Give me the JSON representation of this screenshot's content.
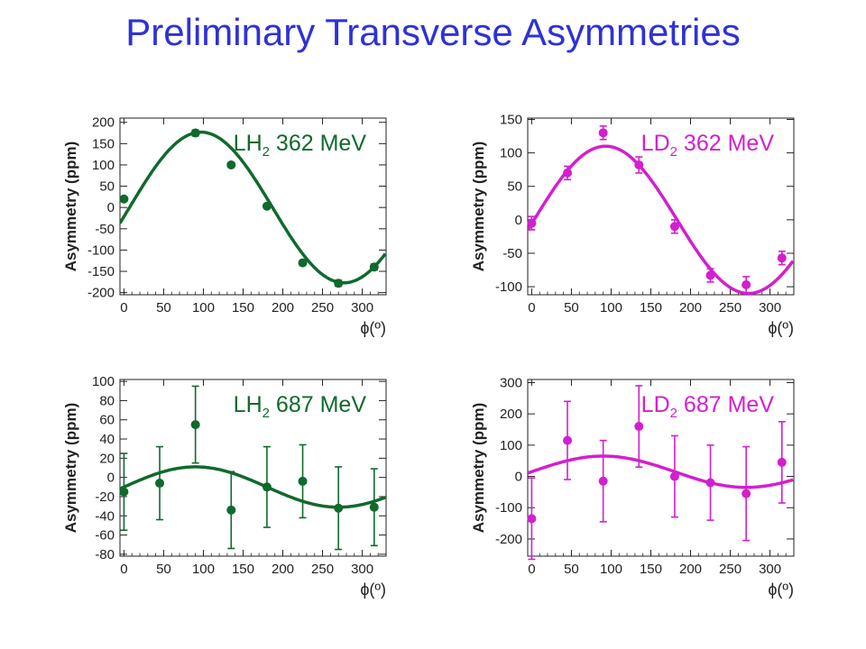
{
  "title": "Preliminary Transverse Asymmetries",
  "colors": {
    "title": "#2e32d6",
    "green": "#0f6a2c",
    "magenta": "#d31fcf"
  },
  "chart_data": [
    {
      "type": "scatter",
      "title_main": "LH",
      "title_sub": "2",
      "title_rest": " 362 MeV",
      "color": "#0f6a2c",
      "xlabel": "ϕ(º)",
      "ylabel": "Asymmetry (ppm)",
      "xlim": [
        -5,
        330
      ],
      "ylim": [
        -205,
        210
      ],
      "xticks": [
        0,
        50,
        100,
        150,
        200,
        250,
        300
      ],
      "yticks": [
        -200,
        -150,
        -100,
        -50,
        0,
        50,
        100,
        150,
        200
      ],
      "ytick_labels": [
        "-200",
        "-150",
        "-100",
        "-50",
        "0",
        "50",
        "100",
        "150",
        "200"
      ],
      "points": [
        {
          "x": 0,
          "y": 20,
          "err": 5
        },
        {
          "x": 90,
          "y": 175,
          "err": 7
        },
        {
          "x": 135,
          "y": 100,
          "err": 5
        },
        {
          "x": 180,
          "y": 3,
          "err": 5
        },
        {
          "x": 225,
          "y": -130,
          "err": 5
        },
        {
          "x": 270,
          "y": -178,
          "err": 7
        },
        {
          "x": 315,
          "y": -140,
          "err": 7
        }
      ],
      "fit": {
        "amplitude": 177,
        "phase_deg": -7,
        "offset": 0
      }
    },
    {
      "type": "scatter",
      "title_main": "LD",
      "title_sub": "2",
      "title_rest": " 362 MeV",
      "color": "#d31fcf",
      "xlabel": "ϕ(º)",
      "ylabel": "Asymmetry (ppm)",
      "xlim": [
        -5,
        330
      ],
      "ylim": [
        -112,
        152
      ],
      "xticks": [
        0,
        50,
        100,
        150,
        200,
        250,
        300
      ],
      "yticks": [
        -100,
        -50,
        0,
        50,
        100,
        150
      ],
      "ytick_labels": [
        "-100",
        "-50",
        "0",
        "50",
        "100",
        "150"
      ],
      "points": [
        {
          "x": 0,
          "y": -5,
          "err": 10
        },
        {
          "x": 45,
          "y": 70,
          "err": 10
        },
        {
          "x": 90,
          "y": 130,
          "err": 10
        },
        {
          "x": 135,
          "y": 82,
          "err": 12
        },
        {
          "x": 180,
          "y": -10,
          "err": 10
        },
        {
          "x": 225,
          "y": -83,
          "err": 10
        },
        {
          "x": 270,
          "y": -97,
          "err": 12
        },
        {
          "x": 315,
          "y": -57,
          "err": 10
        }
      ],
      "fit": {
        "amplitude": 110,
        "phase_deg": -3,
        "offset": 0
      }
    },
    {
      "type": "scatter",
      "title_main": "LH",
      "title_sub": "2",
      "title_rest": " 687 MeV",
      "color": "#0f6a2c",
      "xlabel": "ϕ(º)",
      "ylabel": "Asymmetry (ppm)",
      "xlim": [
        -5,
        330
      ],
      "ylim": [
        -82,
        102
      ],
      "xticks": [
        0,
        50,
        100,
        150,
        200,
        250,
        300
      ],
      "yticks": [
        -80,
        -60,
        -40,
        -20,
        0,
        20,
        40,
        60,
        80,
        100
      ],
      "ytick_labels": [
        "-80",
        "-60",
        "-40",
        "-20",
        "0",
        "20",
        "40",
        "60",
        "80",
        "100"
      ],
      "points": [
        {
          "x": 0,
          "y": -15,
          "err": 40
        },
        {
          "x": 45,
          "y": -6,
          "err": 38
        },
        {
          "x": 90,
          "y": 55,
          "err": 40
        },
        {
          "x": 135,
          "y": -34,
          "err": 40
        },
        {
          "x": 180,
          "y": -10,
          "err": 42
        },
        {
          "x": 225,
          "y": -4,
          "err": 38
        },
        {
          "x": 270,
          "y": -32,
          "err": 43
        },
        {
          "x": 315,
          "y": -31,
          "err": 40
        }
      ],
      "fit": {
        "amplitude": 21,
        "phase_deg": 0,
        "offset": -10
      }
    },
    {
      "type": "scatter",
      "title_main": "LD",
      "title_sub": "2",
      "title_rest": " 687 MeV",
      "color": "#d31fcf",
      "xlabel": "ϕ(º)",
      "ylabel": "Asymmetry (ppm)",
      "xlim": [
        -5,
        330
      ],
      "ylim": [
        -255,
        310
      ],
      "xticks": [
        0,
        50,
        100,
        150,
        200,
        250,
        300
      ],
      "yticks": [
        -200,
        -100,
        0,
        100,
        200,
        300
      ],
      "ytick_labels": [
        "-200",
        "-100",
        "0",
        "100",
        "200",
        "300"
      ],
      "points": [
        {
          "x": 0,
          "y": -135,
          "err": 130
        },
        {
          "x": 45,
          "y": 115,
          "err": 125
        },
        {
          "x": 90,
          "y": -15,
          "err": 130
        },
        {
          "x": 135,
          "y": 160,
          "err": 130
        },
        {
          "x": 180,
          "y": 0,
          "err": 130
        },
        {
          "x": 225,
          "y": -20,
          "err": 120
        },
        {
          "x": 270,
          "y": -55,
          "err": 150
        },
        {
          "x": 315,
          "y": 45,
          "err": 130
        }
      ],
      "fit": {
        "amplitude": 50,
        "phase_deg": 0,
        "offset": 15
      }
    }
  ]
}
